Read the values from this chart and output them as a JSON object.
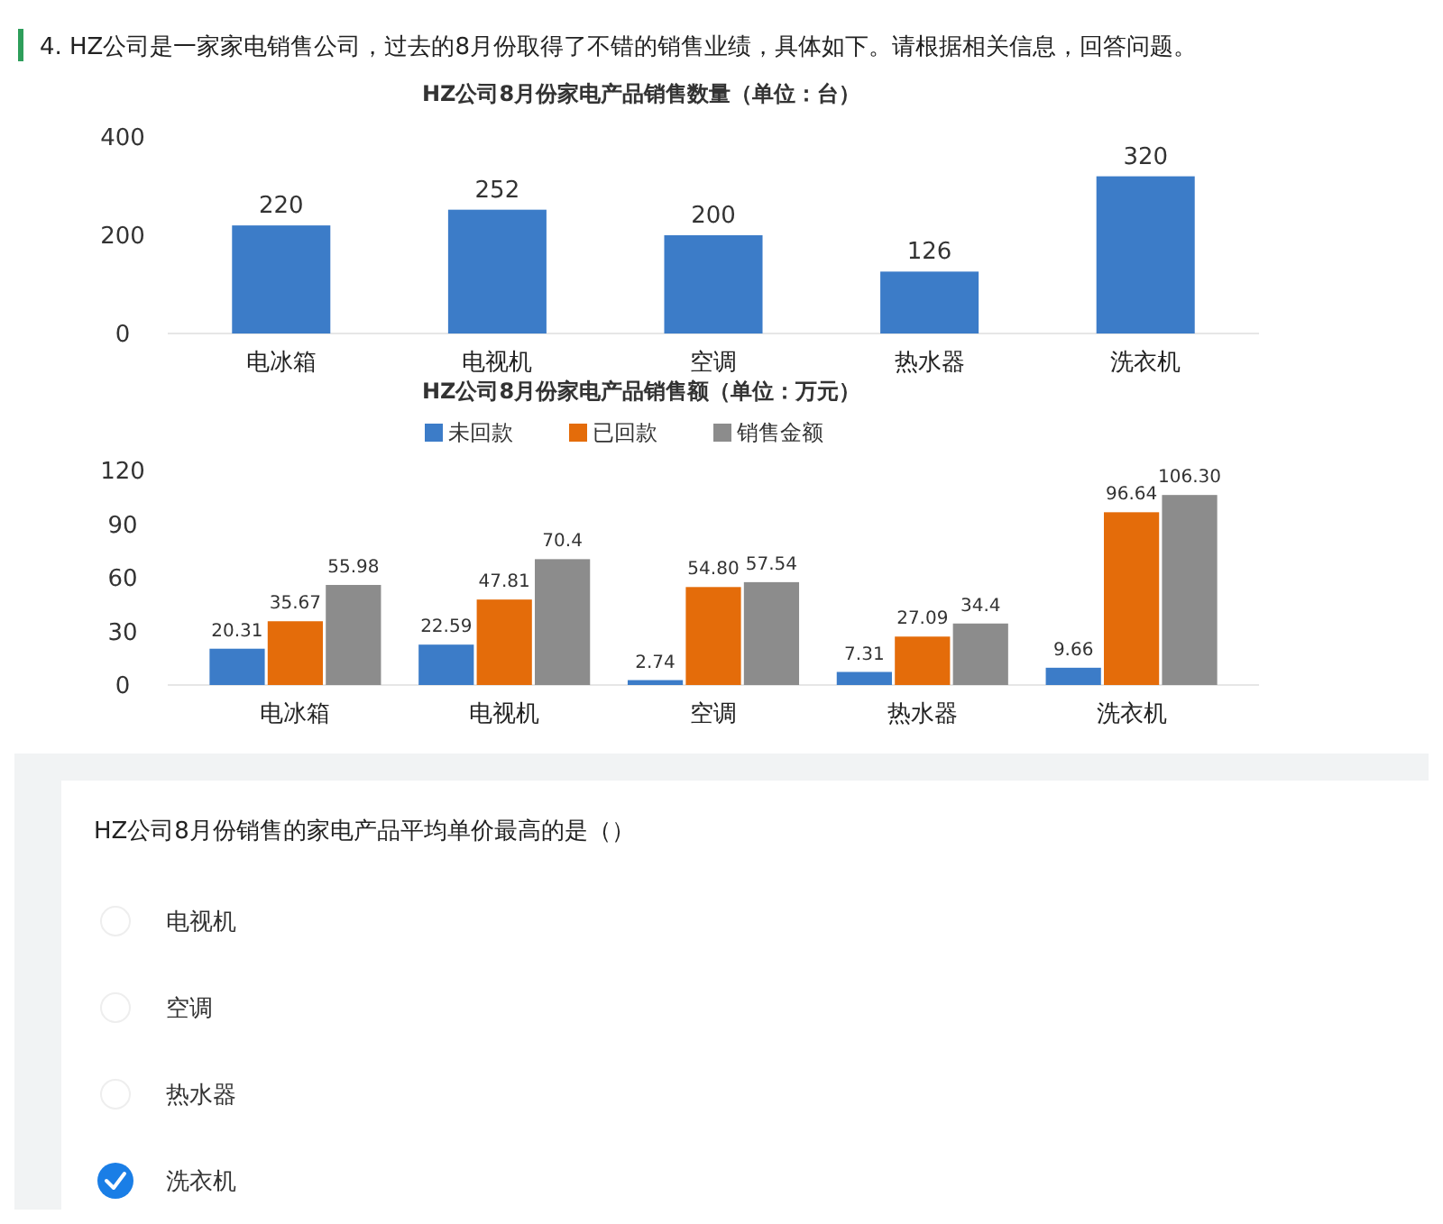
{
  "chart_data": [
    {
      "type": "other",
      "title": "4.  HZ公司是一家家电销售公司，过去的8月份取得了不错的销售业绩，具体如下。请根据相关信息，回答问题。"
    },
    {
      "type": "bar",
      "title": "HZ公司8月份家电产品销售数量（单位：台）",
      "categories": [
        "电冰箱",
        "电视机",
        "空调",
        "热水器",
        "洗衣机"
      ],
      "values": [
        220,
        252,
        200,
        126,
        320
      ],
      "color": "#3c7cc8",
      "ylim": [
        0,
        400
      ],
      "yticks": [
        0,
        200,
        400
      ],
      "data_labels": true,
      "grid": false
    },
    {
      "type": "bar",
      "title": "HZ公司8月份家电产品销售额（单位：万元）",
      "categories": [
        "电冰箱",
        "电视机",
        "空调",
        "热水器",
        "洗衣机"
      ],
      "ylim": [
        0,
        120
      ],
      "yticks": [
        0,
        30,
        60,
        90,
        120
      ],
      "legend": "top",
      "grid": false,
      "series": [
        {
          "name": "未回款",
          "color": "#3c7cc8",
          "values": [
            20.31,
            22.59,
            2.74,
            7.31,
            9.66
          ],
          "value_labels": [
            "20.31",
            "22.59",
            "2.74",
            "7.31",
            "9.66"
          ]
        },
        {
          "name": "已回款",
          "color": "#e46c0a",
          "values": [
            35.67,
            47.81,
            54.8,
            27.09,
            96.64
          ],
          "value_labels": [
            "35.67",
            "47.81",
            "54.80",
            "27.09",
            "96.64"
          ]
        },
        {
          "name": "销售金额",
          "color": "#8c8c8c",
          "values": [
            55.98,
            70.4,
            57.54,
            34.4,
            106.3
          ],
          "value_labels": [
            "55.98",
            "70.4",
            "57.54",
            "34.4",
            "106.30"
          ]
        }
      ]
    },
    {
      "type": "other",
      "title": "HZ公司8月份销售的家电产品平均单价最高的是（）",
      "annotations": [
        "电视机",
        "空调",
        "热水器",
        "洗衣机"
      ]
    }
  ]
}
